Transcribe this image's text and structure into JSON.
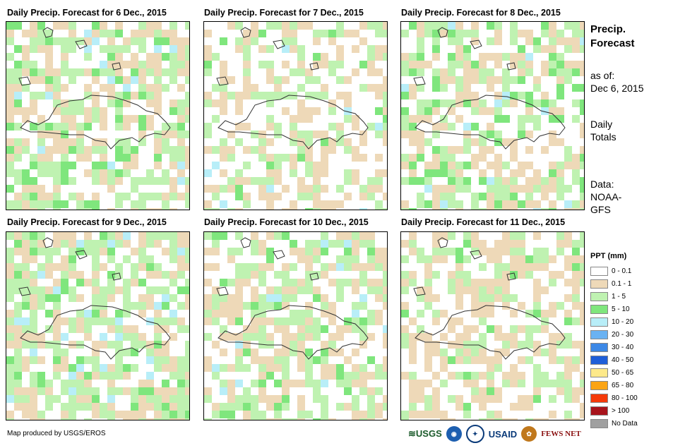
{
  "panels": [
    {
      "title": "Daily Precip. Forecast for 6 Dec., 2015"
    },
    {
      "title": "Daily Precip. Forecast for 7 Dec., 2015"
    },
    {
      "title": "Daily Precip. Forecast for 8 Dec., 2015"
    },
    {
      "title": "Daily Precip. Forecast for 9 Dec., 2015"
    },
    {
      "title": "Daily Precip. Forecast for 10 Dec., 2015"
    },
    {
      "title": "Daily Precip. Forecast for 11 Dec., 2015"
    }
  ],
  "side": {
    "title_line1": "Precip.",
    "title_line2": "Forecast",
    "asof_line1": "as of:",
    "asof_line2": "Dec 6, 2015",
    "totals_line1": "Daily",
    "totals_line2": "Totals",
    "data_line1": "Data:",
    "data_line2": "NOAA-",
    "data_line3": "GFS"
  },
  "legend": {
    "title": "PPT (mm)",
    "items": [
      {
        "label": "0 - 0.1",
        "color": "#ffffff"
      },
      {
        "label": "0.1 - 1",
        "color": "#eed9b8"
      },
      {
        "label": "1 - 5",
        "color": "#bff2b1"
      },
      {
        "label": "5 - 10",
        "color": "#7fe67d"
      },
      {
        "label": "10 - 20",
        "color": "#b8eef8"
      },
      {
        "label": "20 - 30",
        "color": "#6ab2f2"
      },
      {
        "label": "30 - 40",
        "color": "#3c88e6"
      },
      {
        "label": "40 - 50",
        "color": "#1e5ed8"
      },
      {
        "label": "50 - 65",
        "color": "#fde98a"
      },
      {
        "label": "65 - 80",
        "color": "#fba414"
      },
      {
        "label": "80 - 100",
        "color": "#f53a0a"
      },
      {
        "label": "> 100",
        "color": "#a8141c"
      },
      {
        "label": "No Data",
        "color": "#a0a0a0"
      }
    ]
  },
  "credit": "Map produced by USGS/EROS",
  "logos": {
    "usgs": "USGS",
    "usaid": "USAID",
    "fewsnet": "FEWS NET"
  }
}
